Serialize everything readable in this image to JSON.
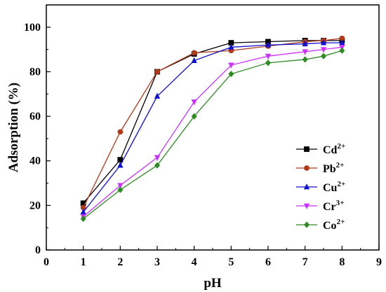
{
  "chart_data": {
    "type": "line",
    "xlabel": "pH",
    "ylabel": "Adsorption (%)",
    "xlim": [
      0,
      9
    ],
    "ylim": [
      0,
      110
    ],
    "x_ticks": [
      "0",
      "1",
      "2",
      "3",
      "4",
      "5",
      "6",
      "7",
      "8",
      "9"
    ],
    "y_ticks": [
      "0",
      "20",
      "40",
      "60",
      "80",
      "100"
    ],
    "grid": false,
    "legend_position": "right",
    "series": [
      {
        "name": "Cd",
        "charge": "2+",
        "color": "#000000",
        "marker": "square",
        "x": [
          1,
          2,
          3,
          4,
          5,
          6,
          7,
          7.5,
          8
        ],
        "y": [
          21,
          40.5,
          80,
          88,
          93,
          93.5,
          94,
          94,
          94
        ]
      },
      {
        "name": "Pb",
        "charge": "2+",
        "color": "#b03a1a",
        "marker": "circle",
        "x": [
          1,
          2,
          3,
          4,
          5,
          6,
          7,
          7.5,
          8
        ],
        "y": [
          19,
          53,
          80,
          88.5,
          89.5,
          91.5,
          93.5,
          94,
          95
        ]
      },
      {
        "name": "Cu",
        "charge": "2+",
        "color": "#1010d0",
        "marker": "triangle-up",
        "x": [
          1,
          2,
          3,
          4,
          5,
          6,
          7,
          7.5,
          8
        ],
        "y": [
          17,
          38,
          69,
          85,
          91,
          92,
          92.5,
          93,
          93
        ]
      },
      {
        "name": "Cr",
        "charge": "3+",
        "color": "#cc33ff",
        "marker": "triangle-down",
        "x": [
          1,
          2,
          3,
          4,
          5,
          6,
          7,
          7.5,
          8
        ],
        "y": [
          15,
          29,
          41.5,
          66.5,
          83,
          87,
          89,
          90,
          91
        ]
      },
      {
        "name": "Co",
        "charge": "2+",
        "color": "#2e8b22",
        "marker": "diamond",
        "x": [
          1,
          2,
          3,
          4,
          5,
          6,
          7,
          7.5,
          8
        ],
        "y": [
          14,
          27,
          38,
          60,
          79,
          84,
          85.5,
          87,
          89.5
        ]
      }
    ]
  }
}
